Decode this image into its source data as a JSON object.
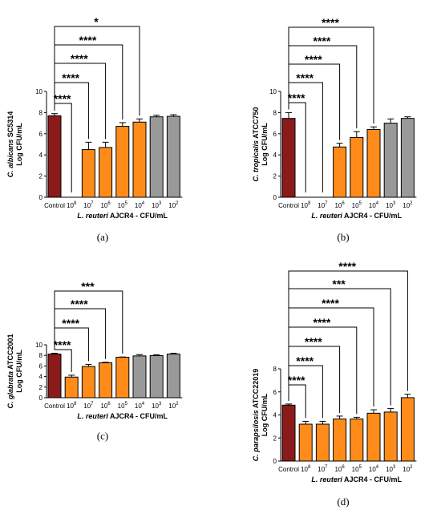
{
  "colors": {
    "control": "#8b1a1a",
    "treated": "#ff8c1a",
    "high_dilution": "#999999"
  },
  "chart_data": [
    {
      "type": "bar",
      "panel": "(a)",
      "ylabel_italic": "C. albicans",
      "ylabel_rest": "SC5314",
      "ylabel_line2": "Log CFU/mL",
      "xlabel_italic": "L. reuteri",
      "xlabel_rest": "AJCR4 - CFU/mL",
      "ylim": [
        0,
        10
      ],
      "yticks": [
        0,
        2,
        4,
        6,
        8,
        10
      ],
      "categories": [
        {
          "base": "Control",
          "exp": ""
        },
        {
          "base": "10",
          "exp": "8"
        },
        {
          "base": "10",
          "exp": "7"
        },
        {
          "base": "10",
          "exp": "6"
        },
        {
          "base": "10",
          "exp": "5"
        },
        {
          "base": "10",
          "exp": "4"
        },
        {
          "base": "10",
          "exp": "3"
        },
        {
          "base": "10",
          "exp": "2"
        }
      ],
      "values": [
        7.7,
        0,
        4.5,
        4.7,
        6.7,
        7.1,
        7.6,
        7.65
      ],
      "errors": [
        0.2,
        0,
        0.7,
        0.5,
        0.35,
        0.3,
        0.15,
        0.15
      ],
      "bar_colors": [
        "control",
        "treated",
        "treated",
        "treated",
        "treated",
        "treated",
        "high_dilution",
        "high_dilution"
      ],
      "significance": [
        {
          "to": 1,
          "label": "****"
        },
        {
          "to": 2,
          "label": "****"
        },
        {
          "to": 3,
          "label": "****"
        },
        {
          "to": 4,
          "label": "****"
        },
        {
          "to": 5,
          "label": "*"
        }
      ]
    },
    {
      "type": "bar",
      "panel": "(b)",
      "ylabel_italic": "C. tropicalis",
      "ylabel_rest": "ATCC750",
      "ylabel_line2": "Log CFU/mL",
      "xlabel_italic": "L. reuteri",
      "xlabel_rest": "AJCR4 - CFU/mL",
      "ylim": [
        0,
        10
      ],
      "yticks": [
        0,
        2,
        4,
        6,
        8,
        10
      ],
      "categories": [
        {
          "base": "Control",
          "exp": ""
        },
        {
          "base": "10",
          "exp": "8"
        },
        {
          "base": "10",
          "exp": "7"
        },
        {
          "base": "10",
          "exp": "6"
        },
        {
          "base": "10",
          "exp": "5"
        },
        {
          "base": "10",
          "exp": "4"
        },
        {
          "base": "10",
          "exp": "3"
        },
        {
          "base": "10",
          "exp": "2"
        }
      ],
      "values": [
        7.45,
        0,
        0,
        4.75,
        5.65,
        6.4,
        7.0,
        7.45
      ],
      "errors": [
        0.55,
        0,
        0,
        0.35,
        0.55,
        0.25,
        0.4,
        0.15
      ],
      "bar_colors": [
        "control",
        "treated",
        "treated",
        "treated",
        "treated",
        "treated",
        "high_dilution",
        "high_dilution"
      ],
      "significance": [
        {
          "to": 1,
          "label": "****"
        },
        {
          "to": 2,
          "label": "****"
        },
        {
          "to": 3,
          "label": "****"
        },
        {
          "to": 4,
          "label": "****"
        },
        {
          "to": 5,
          "label": "****"
        }
      ]
    },
    {
      "type": "bar",
      "panel": "(c)",
      "ylabel_italic": "C. glabrata",
      "ylabel_rest": "ATCC2001",
      "ylabel_line2": "Log CFU/mL",
      "xlabel_italic": "L. reuteri",
      "xlabel_rest": "AJCR4 - CFU/mL",
      "ylim": [
        0,
        10
      ],
      "yticks": [
        0,
        2,
        4,
        6,
        8,
        10
      ],
      "categories": [
        {
          "base": "Control",
          "exp": ""
        },
        {
          "base": "10",
          "exp": "8"
        },
        {
          "base": "10",
          "exp": "7"
        },
        {
          "base": "10",
          "exp": "6"
        },
        {
          "base": "10",
          "exp": "5"
        },
        {
          "base": "10",
          "exp": "4"
        },
        {
          "base": "10",
          "exp": "3"
        },
        {
          "base": "10",
          "exp": "2"
        }
      ],
      "values": [
        8.25,
        3.9,
        5.9,
        6.6,
        7.65,
        7.9,
        7.95,
        8.25
      ],
      "errors": [
        0.15,
        0.35,
        0.4,
        0.1,
        0.05,
        0.25,
        0.15,
        0.15
      ],
      "bar_colors": [
        "control",
        "treated",
        "treated",
        "treated",
        "treated",
        "high_dilution",
        "high_dilution",
        "high_dilution"
      ],
      "significance": [
        {
          "to": 1,
          "label": "****"
        },
        {
          "to": 2,
          "label": "****"
        },
        {
          "to": 3,
          "label": "****"
        },
        {
          "to": 4,
          "label": "***"
        }
      ]
    },
    {
      "type": "bar",
      "panel": "(d)",
      "ylabel_italic": "C. parapsilosis",
      "ylabel_rest": "ATCC22019",
      "ylabel_line2": "Log CFU/mL",
      "xlabel_italic": "L. reuteri",
      "xlabel_rest": "AJCR4 - CFU/mL",
      "ylim": [
        0,
        8
      ],
      "yticks": [
        0,
        2,
        4,
        6,
        8
      ],
      "categories": [
        {
          "base": "Control",
          "exp": ""
        },
        {
          "base": "10",
          "exp": "8"
        },
        {
          "base": "10",
          "exp": "7"
        },
        {
          "base": "10",
          "exp": "6"
        },
        {
          "base": "10",
          "exp": "5"
        },
        {
          "base": "10",
          "exp": "4"
        },
        {
          "base": "10",
          "exp": "3"
        },
        {
          "base": "10",
          "exp": "2"
        }
      ],
      "values": [
        4.85,
        3.2,
        3.2,
        3.65,
        3.65,
        4.15,
        4.25,
        5.5
      ],
      "errors": [
        0.1,
        0.25,
        0.25,
        0.25,
        0.15,
        0.3,
        0.3,
        0.3
      ],
      "bar_colors": [
        "control",
        "treated",
        "treated",
        "treated",
        "treated",
        "treated",
        "treated",
        "treated"
      ],
      "significance": [
        {
          "to": 1,
          "label": "****"
        },
        {
          "to": 2,
          "label": "****"
        },
        {
          "to": 3,
          "label": "****"
        },
        {
          "to": 4,
          "label": "****"
        },
        {
          "to": 5,
          "label": "****"
        },
        {
          "to": 6,
          "label": "***"
        },
        {
          "to": 7,
          "label": "****"
        }
      ]
    }
  ]
}
